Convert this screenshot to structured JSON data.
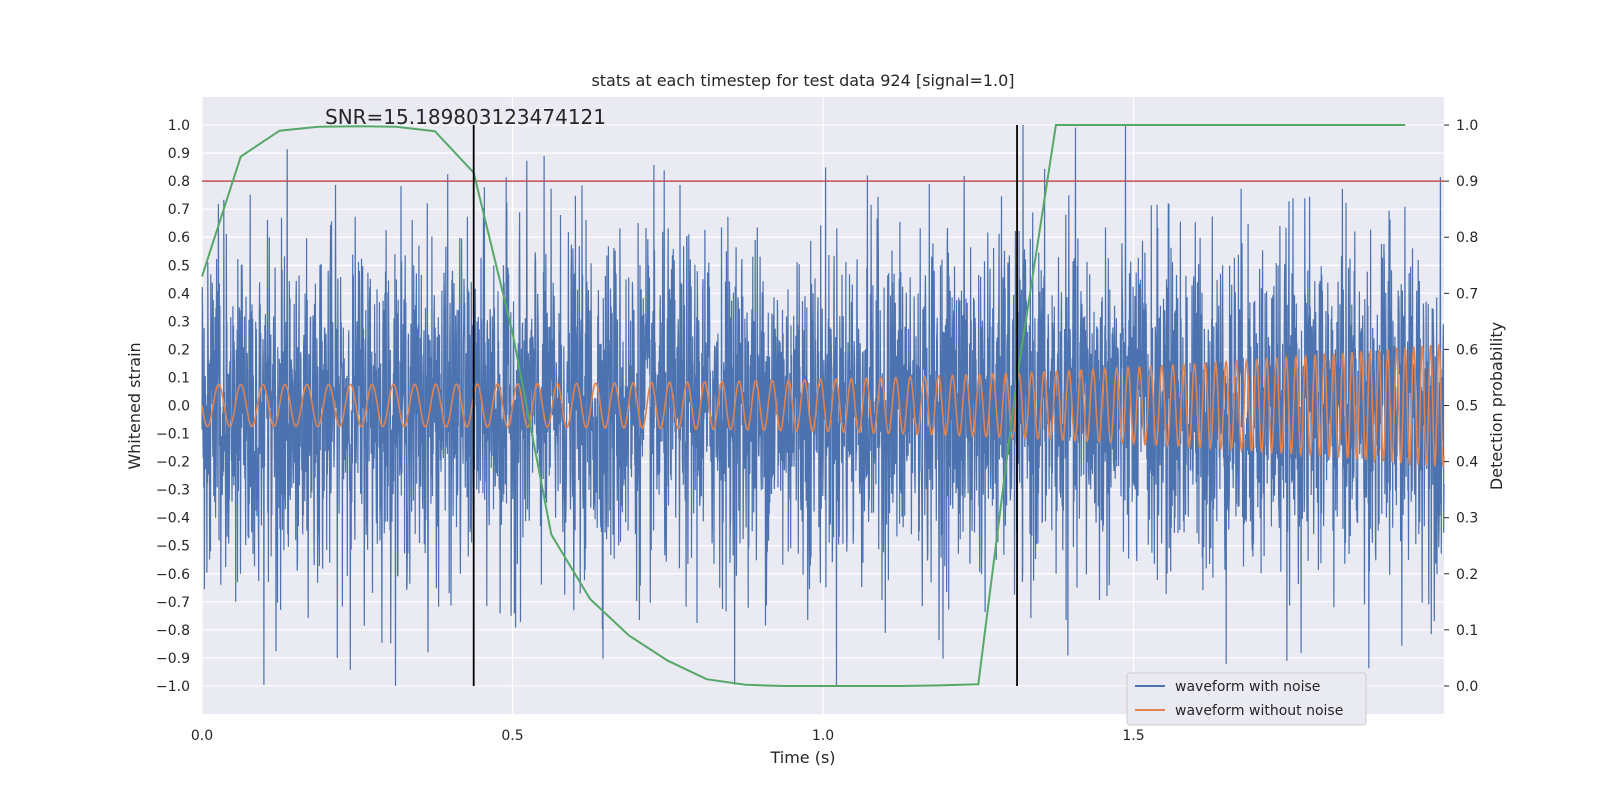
{
  "chart_data": {
    "type": "line",
    "title": "stats at each timestep for test data 924 [signal=1.0]",
    "xlabel": "Time (s)",
    "ylabel_left": "Whitened strain",
    "ylabel_right": "Detection probability",
    "annotation": "SNR=15.189803123474121",
    "xlim": [
      0.0,
      2.0
    ],
    "ylim_left": [
      -1.1,
      1.1
    ],
    "ylim_right": [
      -0.05,
      1.05
    ],
    "x_ticks": [
      "0.0",
      "0.5",
      "1.0",
      "1.5"
    ],
    "x_tick_values": [
      0.0,
      0.5,
      1.0,
      1.5
    ],
    "y_ticks_left": [
      "1.0",
      "0.9",
      "0.8",
      "0.7",
      "0.6",
      "0.5",
      "0.4",
      "0.3",
      "0.2",
      "0.1",
      "0.0",
      "−0.1",
      "−0.2",
      "−0.3",
      "−0.4",
      "−0.5",
      "−0.6",
      "−0.7",
      "−0.8",
      "−0.9",
      "−1.0"
    ],
    "y_tick_values_left": [
      1.0,
      0.9,
      0.8,
      0.7,
      0.6,
      0.5,
      0.4,
      0.3,
      0.2,
      0.1,
      0.0,
      -0.1,
      -0.2,
      -0.3,
      -0.4,
      -0.5,
      -0.6,
      -0.7,
      -0.8,
      -0.9,
      -1.0
    ],
    "y_ticks_right": [
      "1.0",
      "0.9",
      "0.8",
      "0.7",
      "0.6",
      "0.5",
      "0.4",
      "0.3",
      "0.2",
      "0.1",
      "0.0"
    ],
    "y_tick_values_right": [
      1.0,
      0.9,
      0.8,
      0.7,
      0.6,
      0.5,
      0.4,
      0.3,
      0.2,
      0.1,
      0.0
    ],
    "threshold_line": {
      "axis": "right",
      "value": 0.9,
      "color": "#c44e52"
    },
    "vertical_lines": [
      {
        "x": 0.4375,
        "color": "#000000"
      },
      {
        "x": 1.3125,
        "color": "#000000"
      }
    ],
    "legend": {
      "placement": "lower-right",
      "entries": [
        "waveform with noise",
        "waveform without noise"
      ]
    },
    "series": [
      {
        "name": "waveform with noise",
        "axis": "left",
        "color": "#4c72b0",
        "kind": "noisy-waveform",
        "x_range": [
          0.0,
          2.0
        ],
        "samples": 4096,
        "amplitude_range": [
          -1.0,
          1.0
        ],
        "std_estimate": 0.3
      },
      {
        "name": "waveform without noise",
        "axis": "left",
        "color": "#dd8452",
        "kind": "chirp",
        "x_range": [
          0.0,
          2.0
        ],
        "amplitude_start": 0.075,
        "amplitude_end": 0.22,
        "frequency_start_hz": 28,
        "frequency_end_hz": 75
      },
      {
        "name": "detection probability",
        "axis": "right",
        "color": "#55a868",
        "x": [
          0.0,
          0.0625,
          0.125,
          0.1875,
          0.25,
          0.3125,
          0.375,
          0.4375,
          0.5,
          0.5625,
          0.625,
          0.6875,
          0.75,
          0.8125,
          0.875,
          0.9375,
          1.0,
          1.0625,
          1.125,
          1.1875,
          1.25,
          1.3125,
          1.375,
          1.4375,
          1.5,
          1.5625,
          1.625,
          1.6875,
          1.75,
          1.8125,
          1.9375
        ],
        "y": [
          0.73,
          0.944,
          0.99,
          0.997,
          0.998,
          0.997,
          0.989,
          0.915,
          0.63,
          0.27,
          0.155,
          0.09,
          0.045,
          0.012,
          0.002,
          0.0,
          0.0,
          0.0,
          0.0,
          0.001,
          0.003,
          0.55,
          1.0,
          1.0,
          1.0,
          1.0,
          1.0,
          1.0,
          1.0,
          1.0,
          1.0
        ]
      }
    ],
    "colors": {
      "background": "#eaeaf2",
      "grid": "#ffffff"
    }
  }
}
